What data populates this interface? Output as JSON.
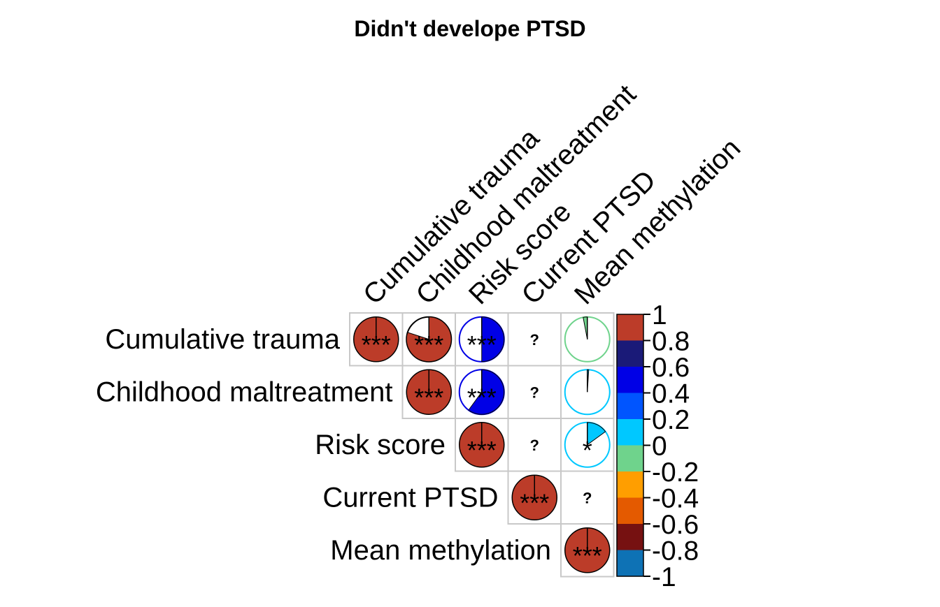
{
  "chart_data": {
    "type": "heatmap",
    "subtype": "correlation-matrix-pie-upper",
    "title": "Didn't develope PTSD",
    "variables": [
      "Cumulative trauma",
      "Childhood maltreatment",
      "Risk score",
      "Current PTSD",
      "Mean methylation"
    ],
    "matrix": [
      [
        1,
        0.8,
        0.5,
        null,
        -0.03
      ],
      [
        0.8,
        1,
        0.6,
        null,
        0.01
      ],
      [
        0.5,
        0.6,
        1,
        null,
        0.15
      ],
      [
        null,
        null,
        null,
        1,
        null
      ],
      [
        -0.03,
        0.01,
        0.15,
        null,
        1
      ]
    ],
    "significance": [
      [
        "***",
        "***",
        "***",
        "?",
        ""
      ],
      [
        "***",
        "***",
        "***",
        "?",
        ""
      ],
      [
        "***",
        "***",
        "***",
        "?",
        "*"
      ],
      [
        "?",
        "?",
        "?",
        "***",
        "?"
      ],
      [
        "",
        "",
        "*",
        "?",
        "***"
      ]
    ],
    "colorbar": {
      "ticks": [
        "1",
        "0.8",
        "0.6",
        "0.4",
        "0.2",
        "0",
        "-0.2",
        "-0.4",
        "-0.6",
        "-0.8",
        "-1"
      ],
      "bins_top_to_bottom": [
        "#bc3c29",
        "#1a1a78",
        "#0000e6",
        "#0055ff",
        "#00c8ff",
        "#6fd38c",
        "#ff9e00",
        "#e45a00",
        "#761111",
        "#0e72b5"
      ]
    },
    "colors": {
      "outline_default": "#000000",
      "grid": "#c8c8c8",
      "text": "#000000"
    }
  }
}
